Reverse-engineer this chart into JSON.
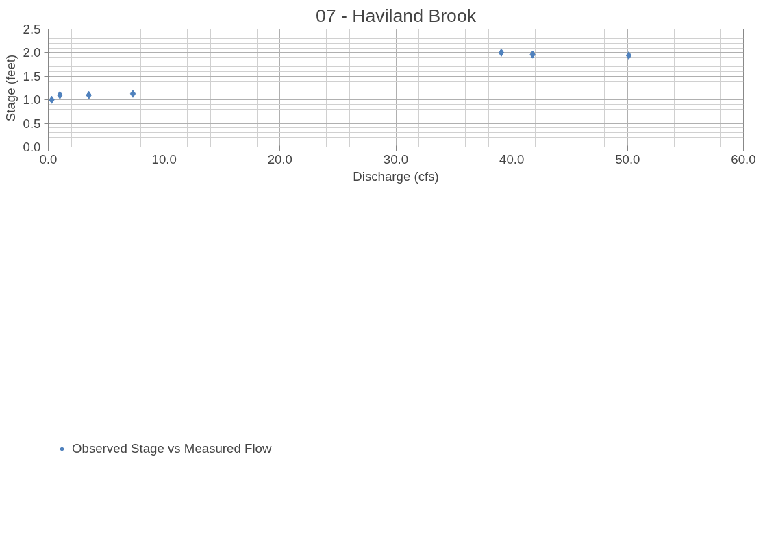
{
  "chart_data": {
    "type": "scatter",
    "title": "07 - Haviland Brook",
    "xlabel": "Discharge (cfs)",
    "ylabel": "Stage (feet)",
    "x": [
      0.3,
      1.0,
      3.5,
      7.3,
      39.1,
      41.8,
      50.1
    ],
    "series": [
      {
        "name": "Observed Stage vs Measured Flow",
        "color": "#4f81bd",
        "values": [
          1.0,
          1.1,
          1.1,
          1.13,
          2.0,
          1.96,
          1.94
        ]
      }
    ],
    "xlim": [
      0,
      60
    ],
    "ylim": [
      0,
      2.5
    ],
    "xticks": [
      {
        "value": 0,
        "label": "0.0"
      },
      {
        "value": 10,
        "label": "10.0"
      },
      {
        "value": 20,
        "label": "20.0"
      },
      {
        "value": 30,
        "label": "30.0"
      },
      {
        "value": 40,
        "label": "40.0"
      },
      {
        "value": 50,
        "label": "50.0"
      },
      {
        "value": 60,
        "label": "60.0"
      }
    ],
    "yticks": [
      {
        "value": 0,
        "label": "0.0"
      },
      {
        "value": 0.5,
        "label": "0.5"
      },
      {
        "value": 1,
        "label": "1.0"
      },
      {
        "value": 1.5,
        "label": "1.5"
      },
      {
        "value": 2,
        "label": "2.0"
      },
      {
        "value": 2.5,
        "label": "2.5"
      }
    ],
    "grid": true,
    "legend": "bottom left",
    "marker": "diamond"
  }
}
